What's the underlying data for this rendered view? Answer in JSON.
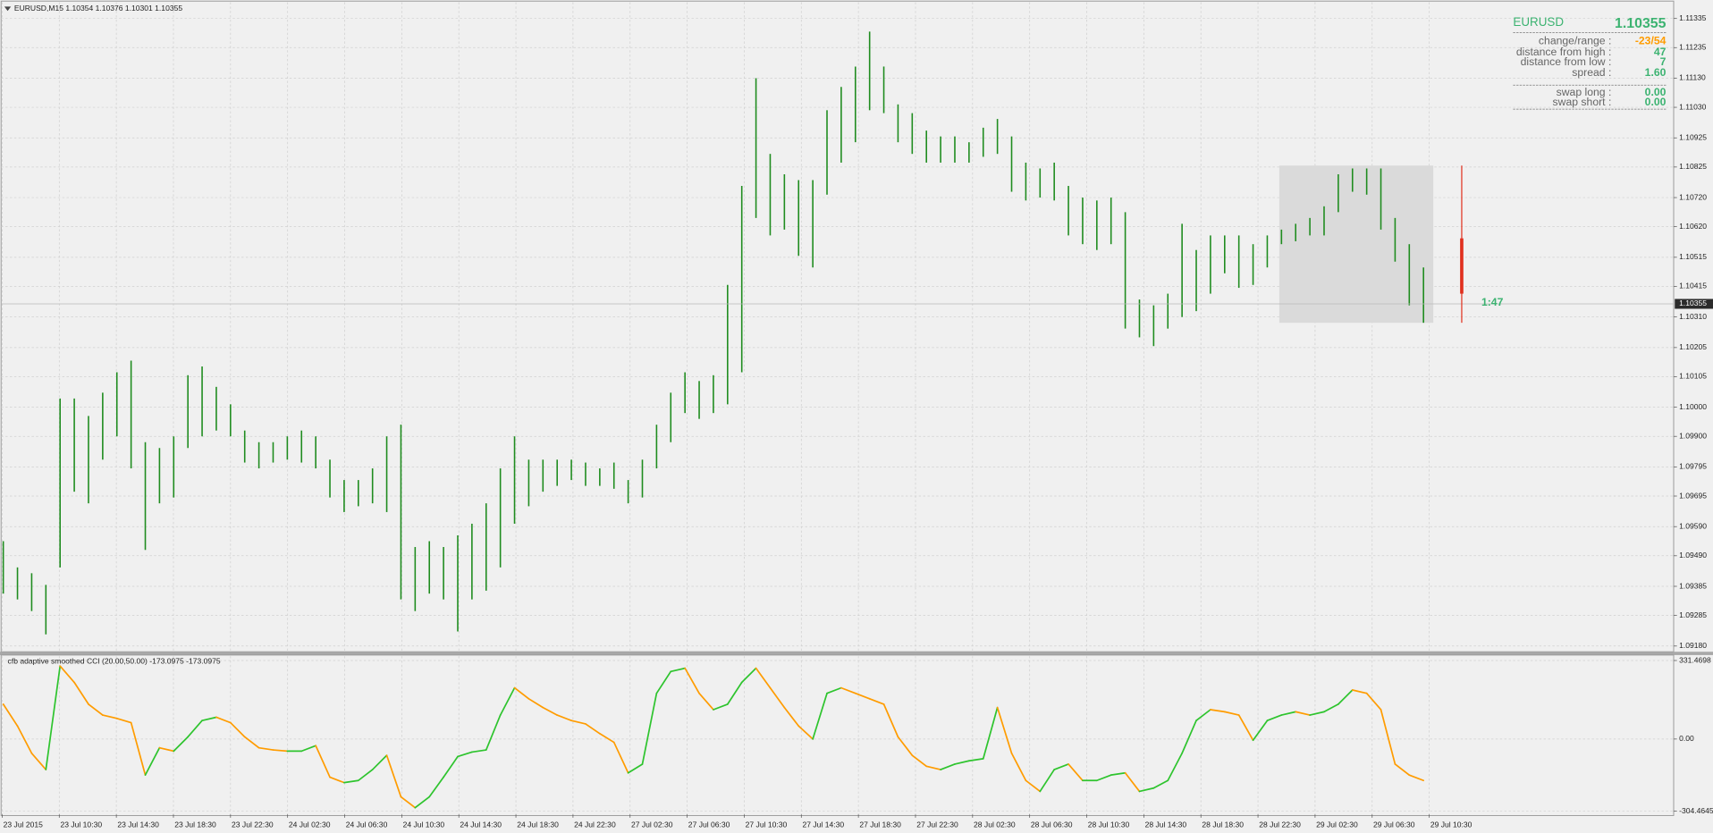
{
  "chart_data": [
    {
      "type": "range-bar",
      "title": "EURUSD,M15  1.10354 1.10376 1.10301 1.10355",
      "x_labels": [
        "23 Jul 2015",
        "23 Jul 10:30",
        "23 Jul 14:30",
        "23 Jul 18:30",
        "23 Jul 22:30",
        "24 Jul 02:30",
        "24 Jul 06:30",
        "24 Jul 10:30",
        "24 Jul 14:30",
        "24 Jul 18:30",
        "24 Jul 22:30",
        "27 Jul 02:30",
        "27 Jul 06:30",
        "27 Jul 10:30",
        "27 Jul 14:30",
        "27 Jul 18:30",
        "27 Jul 22:30",
        "28 Jul 02:30",
        "28 Jul 06:30",
        "28 Jul 10:30",
        "28 Jul 14:30",
        "28 Jul 18:30",
        "28 Jul 22:30",
        "29 Jul 02:30",
        "29 Jul 06:30",
        "29 Jul 10:30"
      ],
      "high": [
        1.0954,
        1.0945,
        1.0943,
        1.0939,
        1.1003,
        1.1003,
        1.0997,
        1.1005,
        1.1012,
        1.1016,
        1.0988,
        1.0986,
        1.099,
        1.1011,
        1.1014,
        1.1007,
        1.1001,
        1.0992,
        1.0988,
        1.0988,
        1.099,
        1.0992,
        1.099,
        1.0982,
        1.0975,
        1.0975,
        1.0979,
        1.099,
        1.0994,
        1.0952,
        1.0954,
        1.0952,
        1.0956,
        1.096,
        1.0967,
        1.0979,
        1.099,
        1.0982,
        1.0982,
        1.0982,
        1.0982,
        1.0981,
        1.0979,
        1.0981,
        1.0975,
        1.0982,
        1.0994,
        1.1005,
        1.1012,
        1.1009,
        1.1011,
        1.1042,
        1.1076,
        1.1113,
        1.1087,
        1.108,
        1.1078,
        1.1078,
        1.1102,
        1.111,
        1.1117,
        1.1129,
        1.1117,
        1.1104,
        1.1101,
        1.1095,
        1.1093,
        1.1093,
        1.1091,
        1.1096,
        1.1099,
        1.1093,
        1.1084,
        1.1082,
        1.1084,
        1.1076,
        1.1072,
        1.1071,
        1.1072,
        1.1067,
        1.1037,
        1.1035,
        1.1039,
        1.1063,
        1.1054,
        1.1059,
        1.1059,
        1.1059,
        1.1056,
        1.1059,
        1.1061,
        1.1063,
        1.1065,
        1.1069,
        1.108,
        1.1082,
        1.1082,
        1.1082,
        1.1065,
        1.1056,
        1.1048
      ],
      "low": [
        1.0936,
        1.0934,
        1.093,
        1.0922,
        1.0945,
        1.0971,
        1.0967,
        1.0982,
        1.099,
        1.0979,
        1.0951,
        1.0967,
        1.0969,
        1.0986,
        1.099,
        1.0992,
        1.099,
        1.0981,
        1.0979,
        1.0981,
        1.0982,
        1.0981,
        1.0979,
        1.0969,
        1.0964,
        1.0966,
        1.0967,
        1.0964,
        1.0934,
        1.093,
        1.0936,
        1.0934,
        1.0923,
        1.0934,
        1.0937,
        1.0945,
        1.096,
        1.0966,
        1.0971,
        1.0973,
        1.0975,
        1.0973,
        1.0973,
        1.0972,
        1.0967,
        1.0969,
        1.0979,
        1.0988,
        1.0998,
        1.0996,
        1.0998,
        1.1001,
        1.1012,
        1.1065,
        1.1059,
        1.1061,
        1.1052,
        1.1048,
        1.1073,
        1.1084,
        1.1091,
        1.1102,
        1.1101,
        1.1091,
        1.1087,
        1.1084,
        1.1084,
        1.1084,
        1.1084,
        1.1086,
        1.1087,
        1.1074,
        1.1071,
        1.1072,
        1.1071,
        1.1059,
        1.1056,
        1.1054,
        1.1056,
        1.1027,
        1.1024,
        1.1021,
        1.1027,
        1.1031,
        1.1033,
        1.1039,
        1.1046,
        1.1041,
        1.1042,
        1.1048,
        1.1056,
        1.1057,
        1.1059,
        1.1059,
        1.1067,
        1.1074,
        1.1073,
        1.1061,
        1.105,
        1.1035,
        1.1029
      ],
      "color": "#1f8c1f",
      "ylim": [
        1.09164,
        1.11391
      ],
      "yticks": [
        1.11335,
        1.11235,
        {
          "value": 1.1113,
          "label": "1.11130"
        },
        {
          "value": 1.1103,
          "label": "1.11030"
        },
        1.10925,
        1.10825,
        {
          "value": 1.1072,
          "label": "1.10720"
        },
        {
          "value": 1.1062,
          "label": "1.10620"
        },
        1.10515,
        1.10415,
        {
          "value": 1.1031,
          "label": "1.10310"
        },
        1.10205,
        1.10105,
        {
          "value": 1.1,
          "label": "1.10000"
        },
        {
          "value": 1.099,
          "label": "1.09900"
        },
        1.09795,
        1.09695,
        {
          "value": 1.0959,
          "label": "1.09590"
        },
        {
          "value": 1.0949,
          "label": "1.09490"
        },
        1.09385,
        1.09285,
        {
          "value": 1.0918,
          "label": "1.09180"
        }
      ],
      "grid": true,
      "current_price": 1.10355,
      "timer": "1:47",
      "range_box": {
        "high": 1.1083,
        "low": 1.1029
      },
      "range_body": {
        "high": 1.1058,
        "low": 1.1039
      }
    },
    {
      "type": "line",
      "title": "cfb adaptive smoothed CCI (20.00,50.00) -173.0975 -173.0975",
      "values": [
        147,
        55,
        -60,
        -129,
        308,
        239,
        147,
        101,
        87,
        69,
        -152,
        -37,
        -51,
        9,
        78,
        92,
        69,
        9,
        -37,
        -46,
        -51,
        -51,
        -28,
        -161,
        -184,
        -175,
        -129,
        -69,
        -244,
        -290,
        -244,
        -161,
        -74,
        -55,
        -46,
        101,
        216,
        170,
        133,
        101,
        78,
        64,
        23,
        -14,
        -143,
        -106,
        193,
        285,
        299,
        193,
        124,
        147,
        239,
        299,
        216,
        133,
        55,
        0,
        193,
        216,
        193,
        170,
        147,
        9,
        -69,
        -115,
        -129,
        -106,
        -92,
        -83,
        133,
        -60,
        -175,
        -221,
        -129,
        -106,
        -175,
        -175,
        -152,
        -143,
        -221,
        -207,
        -175,
        -60,
        78,
        124,
        115,
        101,
        -5,
        78,
        101,
        115,
        101,
        115,
        147,
        207,
        193,
        124,
        -106,
        -152,
        -175
      ],
      "up_color": "#2ec42e",
      "down_color": "#ff9c00",
      "ylim": [
        -304.4645,
        331.4698
      ],
      "yticks": [
        331.4698,
        {
          "value": 0,
          "label": "0.00"
        },
        -304.4645
      ]
    }
  ],
  "info_panel": {
    "symbol": "EURUSD",
    "price": "1.10355",
    "rows": [
      {
        "label": "change/range :",
        "value": "-23/54"
      },
      {
        "label": "distance from high :",
        "value": "47"
      },
      {
        "label": "distance from low :",
        "value": "7"
      },
      {
        "label": "spread :",
        "value": "1.60"
      },
      {
        "label": "swap long :",
        "value": "0.00"
      },
      {
        "label": "swap short :",
        "value": "0.00"
      }
    ]
  }
}
